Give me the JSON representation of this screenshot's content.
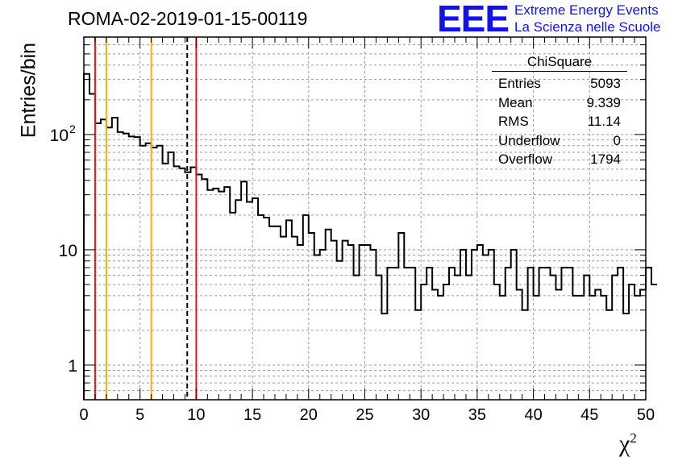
{
  "logo": {
    "text": "EEE",
    "line1": "Extreme Energy Events",
    "line2": "La Scienza nelle Scuole",
    "color": "#1212f0"
  },
  "stats": {
    "title": "ChiSquare",
    "rows": [
      {
        "label": "Entries",
        "value": "5093"
      },
      {
        "label": "Mean",
        "value": "9.339"
      },
      {
        "label": "RMS",
        "value": "11.14"
      },
      {
        "label": "Underflow",
        "value": "0"
      },
      {
        "label": "Overflow",
        "value": "1794"
      }
    ]
  },
  "chart_data": {
    "type": "histogram",
    "title": "ROMA-02-2019-01-15-00119",
    "xlabel": "χ",
    "xlabel_sup": "2",
    "ylabel": "Entries/bin",
    "xlim": [
      0,
      50
    ],
    "ylim": [
      0.5,
      700
    ],
    "log_y": true,
    "grid": true,
    "bin_width": 0.5,
    "xticks": [
      0,
      5,
      10,
      15,
      20,
      25,
      30,
      35,
      40,
      45,
      50
    ],
    "yticks": [
      {
        "value": 1,
        "label": "1"
      },
      {
        "value": 10,
        "label": "10"
      },
      {
        "value": 100,
        "label": "10",
        "sup": "2"
      }
    ],
    "values": [
      335,
      225,
      125,
      135,
      115,
      140,
      105,
      102,
      96,
      95,
      80,
      84,
      77,
      80,
      56,
      70,
      53,
      51,
      47,
      52,
      45,
      41,
      33,
      34,
      32,
      35,
      21,
      27,
      39,
      26,
      28,
      20,
      19,
      16,
      16,
      13,
      18,
      13,
      11,
      20,
      14,
      9,
      10,
      15,
      12,
      8,
      12,
      11,
      6,
      11,
      11,
      10,
      6,
      2.8,
      7,
      7,
      14,
      7,
      7,
      3,
      5,
      7,
      4.5,
      4,
      5,
      7,
      6,
      10,
      6,
      10,
      11,
      9,
      10,
      5,
      4,
      7,
      10,
      4.5,
      3,
      7,
      4,
      7,
      7,
      6,
      4.5,
      7,
      7,
      4,
      4,
      6,
      4,
      4.5,
      4,
      3,
      6,
      7,
      2.8,
      5,
      4,
      4.5,
      7,
      5
    ],
    "vertical_lines": [
      {
        "x": 1.0,
        "color": "#e8141e",
        "style": "solid"
      },
      {
        "x": 2.0,
        "color": "#f0b400",
        "style": "solid"
      },
      {
        "x": 6.0,
        "color": "#f0b400",
        "style": "solid"
      },
      {
        "x": 9.2,
        "color": "#000000",
        "style": "dashed"
      },
      {
        "x": 10.0,
        "color": "#e8141e",
        "style": "solid"
      }
    ]
  }
}
